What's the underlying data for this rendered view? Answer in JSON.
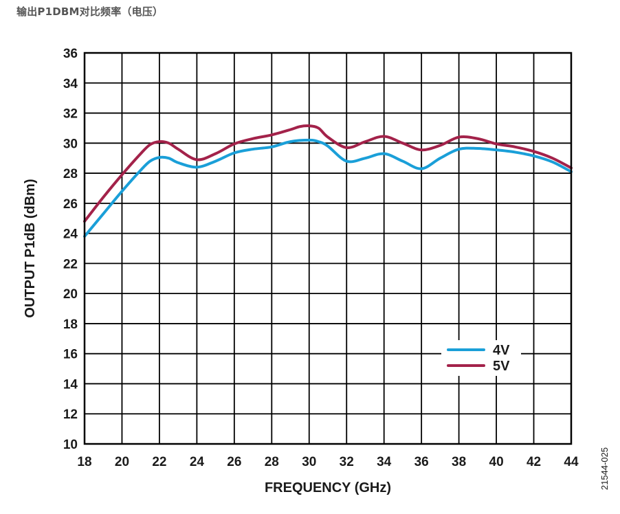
{
  "page": {
    "title": "输出P1DBM对比频率（电压）",
    "figure_id": "21544-025"
  },
  "chart_data": {
    "type": "line",
    "title": "",
    "xlabel": "FREQUENCY (GHz)",
    "ylabel": "OUTPUT P1dB (dBm)",
    "xlim": [
      18,
      44
    ],
    "ylim": [
      10,
      36
    ],
    "xticks": [
      18,
      20,
      22,
      24,
      26,
      28,
      30,
      32,
      34,
      36,
      38,
      40,
      42,
      44
    ],
    "yticks": [
      10,
      12,
      14,
      16,
      18,
      20,
      22,
      24,
      26,
      28,
      30,
      32,
      34,
      36
    ],
    "grid": true,
    "legend_position": "bottom-right",
    "series": [
      {
        "name": "4V",
        "color": "#1a9fd8",
        "x": [
          18,
          19,
          20,
          21,
          21.5,
          22,
          22.5,
          23,
          24,
          25,
          26,
          27,
          28,
          29,
          30,
          30.5,
          31,
          32,
          33,
          34,
          35,
          36,
          37,
          38,
          39,
          40,
          41,
          42,
          43,
          44
        ],
        "y": [
          23.8,
          25.3,
          26.8,
          28.2,
          28.8,
          29.05,
          29.0,
          28.7,
          28.4,
          28.8,
          29.35,
          29.6,
          29.75,
          30.1,
          30.2,
          30.1,
          29.8,
          28.8,
          29.0,
          29.3,
          28.8,
          28.3,
          29.0,
          29.6,
          29.65,
          29.55,
          29.4,
          29.15,
          28.75,
          28.1
        ]
      },
      {
        "name": "5V",
        "color": "#a3224a",
        "x": [
          18,
          19,
          20,
          21,
          21.5,
          22,
          22.5,
          23,
          24,
          25,
          26,
          27,
          28,
          29,
          29.5,
          30,
          30.5,
          31,
          32,
          33,
          34,
          35,
          36,
          37,
          38,
          39,
          40,
          41,
          42,
          43,
          44
        ],
        "y": [
          24.8,
          26.4,
          27.9,
          29.3,
          29.9,
          30.1,
          30.0,
          29.6,
          28.9,
          29.3,
          29.95,
          30.3,
          30.55,
          30.9,
          31.1,
          31.15,
          31.0,
          30.4,
          29.7,
          30.1,
          30.45,
          30.0,
          29.55,
          29.85,
          30.4,
          30.3,
          29.95,
          29.75,
          29.45,
          29.0,
          28.35
        ]
      }
    ]
  }
}
